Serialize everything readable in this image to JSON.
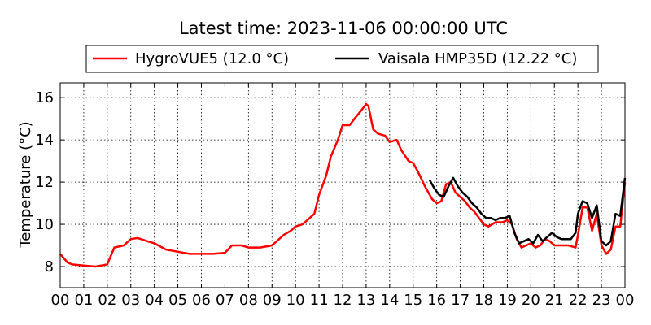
{
  "chart_data": {
    "type": "line",
    "title": "Latest time: 2023-11-06 00:00:00 UTC",
    "ylabel": "Temperature (°C)",
    "xlabel": "",
    "xlim": [
      0,
      24
    ],
    "ylim": [
      7,
      16.7
    ],
    "x_ticks": [
      0,
      1,
      2,
      3,
      4,
      5,
      6,
      7,
      8,
      9,
      10,
      11,
      12,
      13,
      14,
      15,
      16,
      17,
      18,
      19,
      20,
      21,
      22,
      23,
      24
    ],
    "x_tick_labels": [
      "00",
      "01",
      "02",
      "03",
      "04",
      "05",
      "06",
      "07",
      "08",
      "09",
      "10",
      "11",
      "12",
      "13",
      "14",
      "15",
      "16",
      "17",
      "18",
      "19",
      "20",
      "21",
      "22",
      "23",
      "00"
    ],
    "y_ticks": [
      8,
      10,
      12,
      14,
      16
    ],
    "y_tick_labels": [
      "8",
      "10",
      "12",
      "14",
      "16"
    ],
    "grid": true,
    "legend_position": "top",
    "series": [
      {
        "name": "HygroVUE5 (12.0 °C)",
        "color": "#ff0000",
        "x": [
          0,
          0.3,
          0.5,
          1,
          1.5,
          2,
          2.3,
          2.7,
          3,
          3.3,
          3.7,
          4,
          4.5,
          5,
          5.5,
          6,
          6.5,
          7,
          7.3,
          7.7,
          8,
          8.5,
          9,
          9.5,
          9.8,
          10,
          10.3,
          10.5,
          10.8,
          11,
          11.3,
          11.5,
          11.8,
          12,
          12.3,
          12.5,
          12.8,
          13,
          13.1,
          13.3,
          13.5,
          13.8,
          14,
          14.3,
          14.5,
          14.8,
          15,
          15.2,
          15.5,
          15.8,
          16,
          16.2,
          16.4,
          16.6,
          16.8,
          17,
          17.2,
          17.4,
          17.6,
          17.8,
          18,
          18.2,
          18.5,
          18.8,
          19,
          19.2,
          19.4,
          19.6,
          19.8,
          20,
          20.2,
          20.4,
          20.6,
          20.8,
          21,
          21.3,
          21.6,
          21.9,
          22,
          22.2,
          22.4,
          22.6,
          22.8,
          23,
          23.2,
          23.4,
          23.6,
          23.8,
          24
        ],
        "y": [
          8.6,
          8.2,
          8.1,
          8.05,
          8.0,
          8.1,
          8.9,
          9.0,
          9.3,
          9.35,
          9.2,
          9.1,
          8.8,
          8.7,
          8.6,
          8.6,
          8.6,
          8.65,
          9.0,
          9.0,
          8.9,
          8.9,
          9.0,
          9.5,
          9.7,
          9.9,
          10.0,
          10.2,
          10.5,
          11.4,
          12.3,
          13.2,
          14.0,
          14.7,
          14.7,
          15.0,
          15.4,
          15.7,
          15.6,
          14.5,
          14.3,
          14.2,
          13.9,
          14.0,
          13.5,
          13.0,
          12.9,
          12.5,
          11.8,
          11.2,
          11.0,
          11.1,
          11.9,
          12.0,
          11.5,
          11.3,
          11.1,
          10.8,
          10.6,
          10.3,
          10.0,
          9.9,
          10.1,
          10.1,
          10.2,
          10.0,
          9.3,
          8.9,
          9.0,
          9.1,
          8.9,
          9.0,
          9.3,
          9.2,
          9.0,
          9.0,
          9.0,
          8.9,
          9.5,
          10.8,
          10.8,
          9.7,
          10.5,
          9.0,
          8.6,
          8.8,
          9.9,
          9.9,
          12.0
        ]
      },
      {
        "name": "Vaisala HMP35D (12.22 °C)",
        "color": "#000000",
        "x": [
          15.7,
          15.9,
          16.1,
          16.3,
          16.5,
          16.7,
          16.9,
          17.1,
          17.3,
          17.5,
          17.7,
          17.9,
          18.1,
          18.3,
          18.5,
          18.7,
          18.9,
          19.1,
          19.3,
          19.5,
          19.7,
          19.9,
          20.1,
          20.3,
          20.5,
          20.7,
          20.9,
          21.1,
          21.3,
          21.5,
          21.7,
          21.9,
          22.0,
          22.2,
          22.4,
          22.6,
          22.8,
          23.0,
          23.2,
          23.4,
          23.6,
          23.8,
          24
        ],
        "y": [
          12.1,
          11.7,
          11.4,
          11.3,
          11.8,
          12.2,
          11.8,
          11.5,
          11.3,
          11.0,
          10.8,
          10.5,
          10.3,
          10.3,
          10.2,
          10.3,
          10.3,
          10.4,
          9.6,
          9.1,
          9.2,
          9.3,
          9.1,
          9.5,
          9.2,
          9.4,
          9.6,
          9.4,
          9.3,
          9.3,
          9.3,
          9.6,
          10.5,
          11.1,
          11.0,
          10.3,
          10.9,
          9.2,
          9.0,
          9.2,
          10.5,
          10.4,
          12.2
        ]
      }
    ]
  }
}
